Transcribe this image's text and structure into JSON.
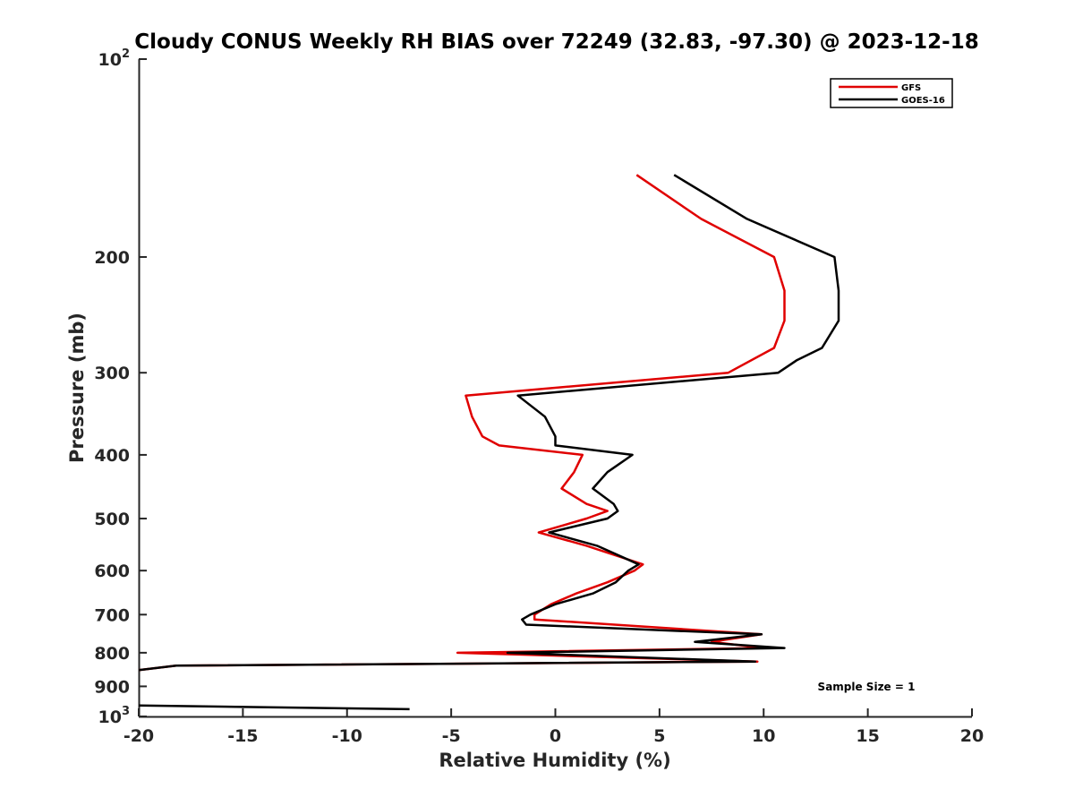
{
  "chart_data": {
    "type": "line",
    "title": "Cloudy CONUS Weekly RH BIAS over 72249 (32.83, -97.30) @ 2023-12-18",
    "xlabel": "Relative Humidity (%)",
    "ylabel": "Pressure (mb)",
    "xlim": [
      -20,
      20
    ],
    "ylim": [
      100,
      1000
    ],
    "y_scale": "log",
    "y_reversed": true,
    "grid": false,
    "legend_position": "top-right",
    "x_ticks": [
      {
        "value": -20,
        "label": "-20"
      },
      {
        "value": -15,
        "label": "-15"
      },
      {
        "value": -10,
        "label": "-10"
      },
      {
        "value": -5,
        "label": "-5"
      },
      {
        "value": 0,
        "label": "0"
      },
      {
        "value": 5,
        "label": "5"
      },
      {
        "value": 10,
        "label": "10"
      },
      {
        "value": 15,
        "label": "15"
      },
      {
        "value": 20,
        "label": "20"
      }
    ],
    "y_ticks": [
      {
        "value": 100,
        "base": "10",
        "exp": "2"
      },
      {
        "value": 200,
        "base": "200",
        "exp": ""
      },
      {
        "value": 300,
        "base": "300",
        "exp": ""
      },
      {
        "value": 400,
        "base": "400",
        "exp": ""
      },
      {
        "value": 500,
        "base": "500",
        "exp": ""
      },
      {
        "value": 600,
        "base": "600",
        "exp": ""
      },
      {
        "value": 700,
        "base": "700",
        "exp": ""
      },
      {
        "value": 800,
        "base": "800",
        "exp": ""
      },
      {
        "value": 900,
        "base": "900",
        "exp": ""
      },
      {
        "value": 1000,
        "base": "10",
        "exp": "3"
      }
    ],
    "series": [
      {
        "name": "GFS",
        "color": "#e00000",
        "points": [
          [
            3.9,
            150
          ],
          [
            7.0,
            175
          ],
          [
            10.5,
            200
          ],
          [
            11.0,
            225
          ],
          [
            11.0,
            250
          ],
          [
            10.5,
            275
          ],
          [
            8.3,
            300
          ],
          [
            -4.3,
            325
          ],
          [
            -4.0,
            350
          ],
          [
            -3.5,
            375
          ],
          [
            -2.7,
            387
          ],
          [
            1.3,
            400
          ],
          [
            0.9,
            425
          ],
          [
            0.3,
            450
          ],
          [
            1.5,
            475
          ],
          [
            2.5,
            487
          ],
          [
            1.5,
            500
          ],
          [
            -0.8,
            525
          ],
          [
            1.5,
            550
          ],
          [
            4.2,
            587
          ],
          [
            3.8,
            600
          ],
          [
            2.5,
            625
          ],
          [
            1.0,
            650
          ],
          [
            -0.2,
            675
          ],
          [
            -1.0,
            700
          ],
          [
            -1.0,
            712
          ],
          [
            9.9,
            750
          ],
          [
            7.5,
            770
          ],
          [
            10.0,
            787
          ],
          [
            -4.7,
            800
          ],
          [
            9.7,
            825
          ],
          [
            -18.2,
            837
          ],
          [
            -20.0,
            850
          ]
        ]
      },
      {
        "name": "GOES-16",
        "color": "#000000",
        "points": [
          [
            5.7,
            150
          ],
          [
            9.2,
            175
          ],
          [
            13.4,
            200
          ],
          [
            13.6,
            225
          ],
          [
            13.6,
            250
          ],
          [
            12.8,
            275
          ],
          [
            11.6,
            287
          ],
          [
            10.7,
            300
          ],
          [
            -1.8,
            325
          ],
          [
            -0.5,
            350
          ],
          [
            0.0,
            375
          ],
          [
            0.0,
            387
          ],
          [
            3.7,
            400
          ],
          [
            2.5,
            425
          ],
          [
            1.8,
            450
          ],
          [
            2.8,
            475
          ],
          [
            3.0,
            487
          ],
          [
            2.5,
            500
          ],
          [
            -0.3,
            525
          ],
          [
            2.0,
            550
          ],
          [
            4.0,
            587
          ],
          [
            3.5,
            600
          ],
          [
            2.9,
            625
          ],
          [
            1.8,
            650
          ],
          [
            0.0,
            675
          ],
          [
            -1.2,
            700
          ],
          [
            -1.6,
            712
          ],
          [
            -1.4,
            725
          ],
          [
            9.9,
            750
          ],
          [
            6.7,
            770
          ],
          [
            11.0,
            787
          ],
          [
            -2.3,
            800
          ],
          [
            9.6,
            825
          ],
          [
            -18.2,
            837
          ],
          [
            -20.0,
            850
          ]
        ]
      },
      {
        "name": "GOES-16 (lower)",
        "color": "#000000",
        "legend": false,
        "points": [
          [
            -20.0,
            962
          ],
          [
            -7.0,
            975
          ]
        ]
      }
    ],
    "annotations": [
      {
        "text": "Sample Size = 1"
      }
    ]
  }
}
